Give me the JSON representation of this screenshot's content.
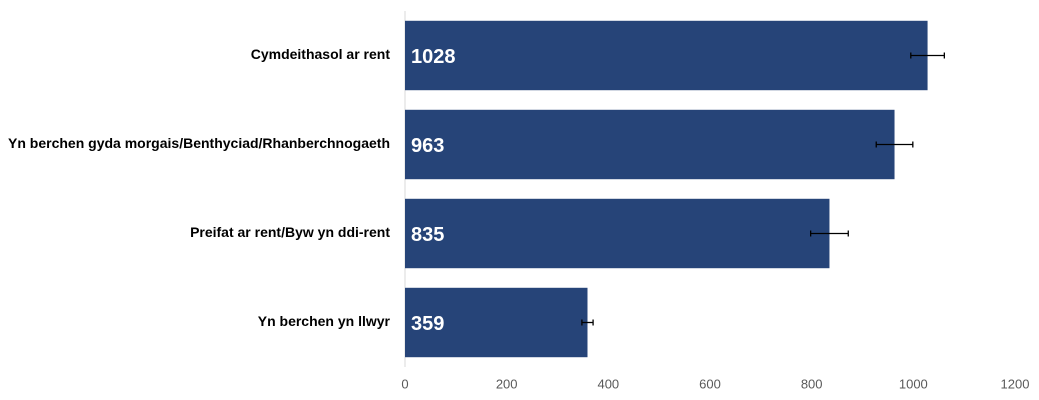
{
  "chart_data": {
    "type": "hbar",
    "categories": [
      "Cymdeithasol ar rent",
      "Yn berchen gyda morgais/Benthyciad/Rhanberchnogaeth",
      "Preifat ar rent/Byw yn ddi-rent",
      "Yn berchen yn llwyr"
    ],
    "values": [
      1028,
      963,
      835,
      359
    ],
    "errors": [
      33,
      36,
      37,
      11
    ],
    "color": "#264478",
    "xlim": [
      0,
      1200
    ],
    "xticks": [
      0,
      200,
      400,
      600,
      800,
      1000,
      1200
    ],
    "grid": false
  }
}
